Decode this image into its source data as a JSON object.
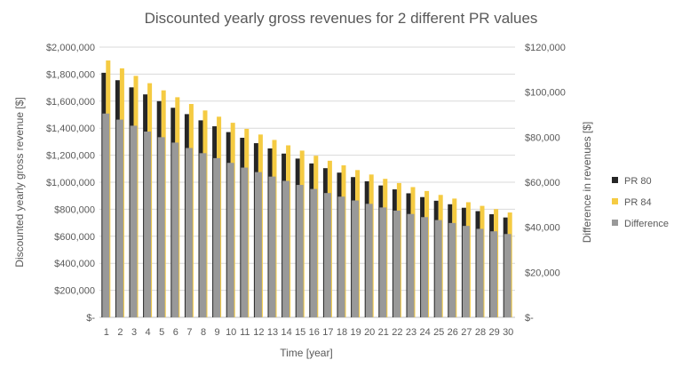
{
  "chart_data": {
    "type": "bar",
    "title": "Discounted yearly gross revenues for 2 different PR values",
    "xlabel": "Time [year]",
    "ylabel": "Discounted yearly gross revenue [$]",
    "y2label": "Difference in revenues [$]",
    "categories": [
      "1",
      "2",
      "3",
      "4",
      "5",
      "6",
      "7",
      "8",
      "9",
      "10",
      "11",
      "12",
      "13",
      "14",
      "15",
      "16",
      "17",
      "18",
      "19",
      "20",
      "21",
      "22",
      "23",
      "24",
      "25",
      "26",
      "27",
      "28",
      "29",
      "30"
    ],
    "ylim": [
      0,
      2000000
    ],
    "y2lim": [
      0,
      120000
    ],
    "yticks": [
      "$-",
      "$200,000",
      "$400,000",
      "$600,000",
      "$800,000",
      "$1,000,000",
      "$1,200,000",
      "$1,400,000",
      "$1,600,000",
      "$1,800,000",
      "$2,000,000"
    ],
    "y2ticks": [
      "$-",
      "$20,000",
      "$40,000",
      "$60,000",
      "$80,000",
      "$100,000",
      "$120,000"
    ],
    "grid": true,
    "legend_position": "right",
    "series": [
      {
        "name": "PR 80",
        "axis": "left",
        "color": "#262626",
        "values": [
          1810000,
          1755000,
          1702000,
          1650000,
          1600000,
          1551000,
          1504000,
          1458000,
          1414000,
          1371000,
          1329000,
          1289000,
          1250000,
          1212000,
          1175000,
          1139000,
          1104000,
          1071000,
          1038000,
          1007000,
          976000,
          947000,
          918000,
          890000,
          863000,
          837000,
          811000,
          786000,
          763000,
          739000
        ]
      },
      {
        "name": "PR 84",
        "axis": "left",
        "color": "#F5CB42",
        "values": [
          1901000,
          1843000,
          1787000,
          1733000,
          1680000,
          1629000,
          1579000,
          1531000,
          1485000,
          1440000,
          1395000,
          1353000,
          1313000,
          1273000,
          1234000,
          1196000,
          1159000,
          1125000,
          1090000,
          1057000,
          1025000,
          994000,
          964000,
          935000,
          906000,
          879000,
          852000,
          825000,
          801000,
          776000
        ]
      },
      {
        "name": "Difference",
        "axis": "right",
        "color": "#999999",
        "values": [
          90500,
          87800,
          85100,
          82500,
          80000,
          77600,
          75200,
          72900,
          70700,
          68600,
          66500,
          64500,
          62500,
          60600,
          58800,
          57000,
          55200,
          53600,
          51900,
          50400,
          48800,
          47400,
          45900,
          44500,
          43200,
          41900,
          40600,
          39300,
          38200,
          37000
        ]
      }
    ]
  }
}
